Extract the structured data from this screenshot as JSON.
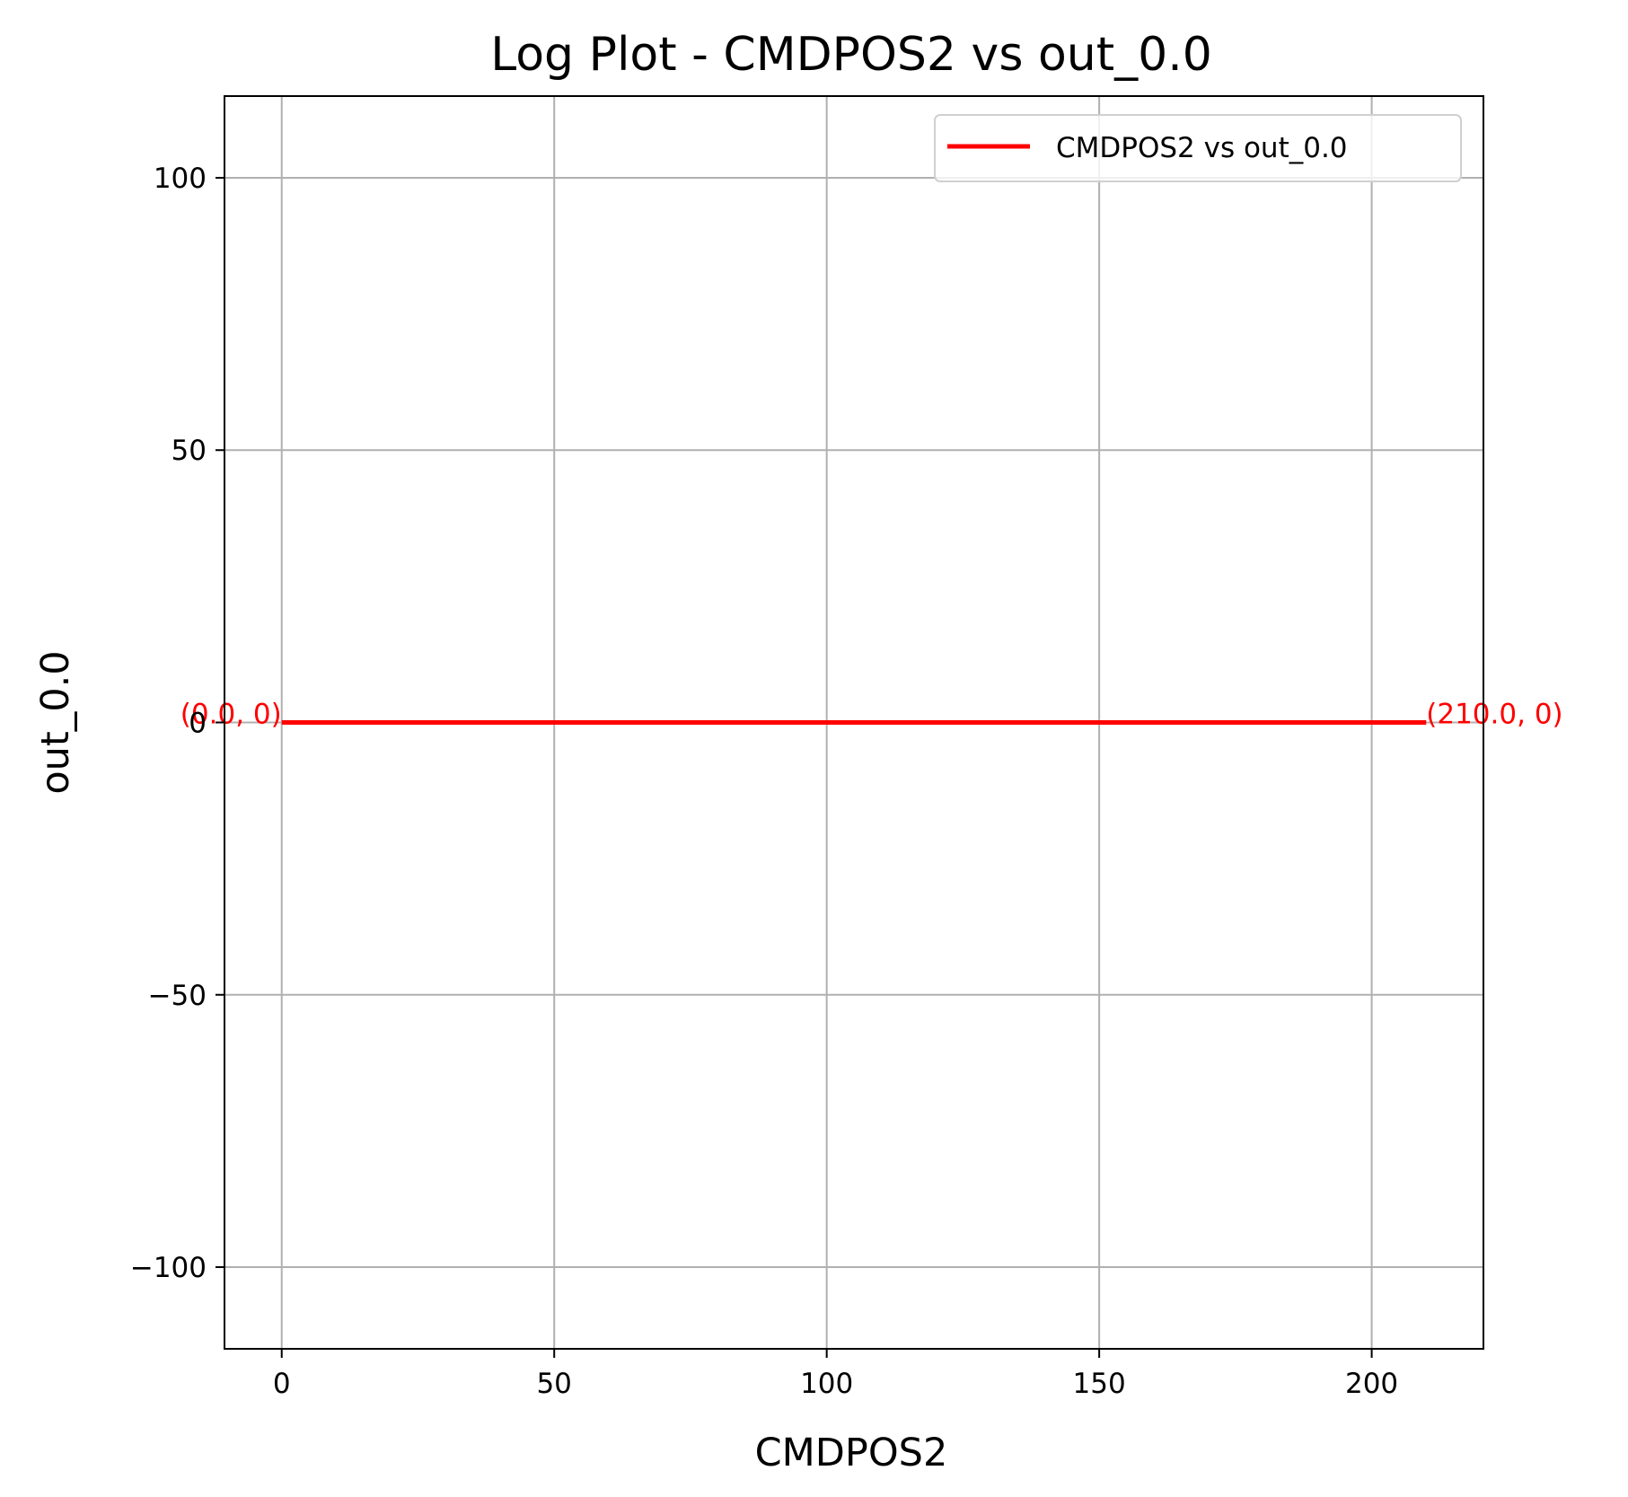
{
  "chart_data": {
    "type": "line",
    "title": "Log Plot - CMDPOS2 vs out_0.0",
    "xlabel": "CMDPOS2",
    "ylabel": "out_0.0",
    "xlim": [
      -10.5,
      220.5
    ],
    "ylim": [
      -115,
      115
    ],
    "xticks": [
      0,
      50,
      100,
      150,
      200
    ],
    "xtick_labels": [
      "0",
      "50",
      "100",
      "150",
      "200"
    ],
    "yticks": [
      -100,
      -50,
      0,
      50,
      100
    ],
    "ytick_labels": [
      "−100",
      "−50",
      "0",
      "50",
      "100"
    ],
    "grid": true,
    "legend_position": "top-right",
    "series": [
      {
        "name": "CMDPOS2 vs out_0.0",
        "color": "#ff0000",
        "x": [
          0.0,
          210.0
        ],
        "y": [
          0,
          0
        ]
      }
    ],
    "annotations": [
      {
        "text": "(0.0, 0)",
        "x": 0.0,
        "y": 0,
        "anchor": "end",
        "color": "#ff0000"
      },
      {
        "text": "(210.0, 0)",
        "x": 210.0,
        "y": 0,
        "anchor": "start",
        "color": "#ff0000"
      }
    ]
  }
}
